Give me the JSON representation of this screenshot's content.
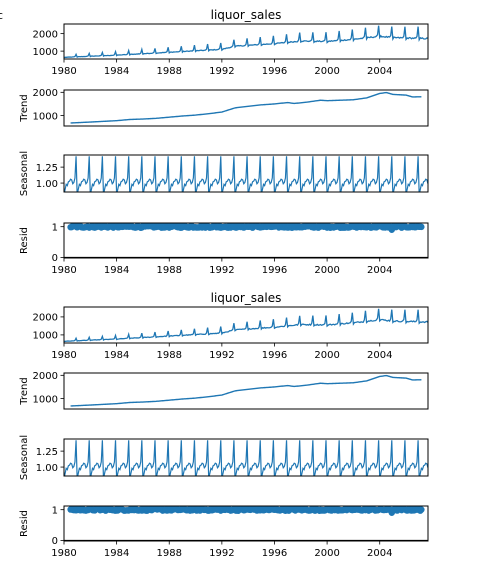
{
  "figure": {
    "stray_mark": "c",
    "colors": {
      "line": "#1f77b4",
      "axis": "#000000"
    }
  },
  "chart_data": [
    {
      "type": "line",
      "title": "liquor_sales",
      "ylabel": "",
      "xlim": [
        1980.0,
        2007.67
      ],
      "ylim": [
        550,
        2550
      ],
      "yticks": [
        1000,
        2000
      ],
      "xticks": [
        1980,
        1984,
        1988,
        1992,
        1996,
        2000,
        2004
      ],
      "series": [
        {
          "kind": "monthly-observed",
          "start": 1980.0,
          "months": 333,
          "annual_base_anchors": [
            [
              1980,
              650
            ],
            [
              1984,
              780
            ],
            [
              1988,
              950
            ],
            [
              1992,
              1120
            ],
            [
              1993,
              1300
            ],
            [
              1996,
              1450
            ],
            [
              1998,
              1600
            ],
            [
              2000,
              1580
            ],
            [
              2002,
              1700
            ],
            [
              2004,
              1880
            ],
            [
              2005,
              1800
            ],
            [
              2007.67,
              1750
            ]
          ],
          "seasonal_amplitude_start": 120,
          "seasonal_amplitude_end": 650
        }
      ]
    },
    {
      "type": "line",
      "title": "",
      "ylabel": "Trend",
      "xlim": [
        1980.0,
        2007.67
      ],
      "ylim": [
        550,
        2100
      ],
      "yticks": [
        1000,
        2000
      ],
      "xticks": [],
      "series": [
        {
          "kind": "trend",
          "points": [
            [
              1980.5,
              680
            ],
            [
              1982,
              720
            ],
            [
              1984,
              780
            ],
            [
              1985,
              830
            ],
            [
              1986,
              850
            ],
            [
              1987,
              880
            ],
            [
              1988,
              930
            ],
            [
              1989,
              980
            ],
            [
              1990,
              1020
            ],
            [
              1991,
              1080
            ],
            [
              1992,
              1150
            ],
            [
              1993,
              1330
            ],
            [
              1994,
              1400
            ],
            [
              1995,
              1460
            ],
            [
              1996,
              1500
            ],
            [
              1997,
              1560
            ],
            [
              1997.5,
              1520
            ],
            [
              1998.5,
              1580
            ],
            [
              1999.5,
              1660
            ],
            [
              2000,
              1640
            ],
            [
              2001,
              1660
            ],
            [
              2002,
              1680
            ],
            [
              2003,
              1760
            ],
            [
              2004,
              1950
            ],
            [
              2004.5,
              1990
            ],
            [
              2005,
              1910
            ],
            [
              2006,
              1880
            ],
            [
              2006.5,
              1800
            ],
            [
              2007.2,
              1810
            ]
          ]
        }
      ]
    },
    {
      "type": "line",
      "title": "",
      "ylabel": "Seasonal",
      "xlim": [
        1980.0,
        2007.67
      ],
      "ylim": [
        0.86,
        1.44
      ],
      "yticks": [
        1.0,
        1.25
      ],
      "xticks": [],
      "series": [
        {
          "kind": "seasonal",
          "monthly_pattern": [
            0.82,
            0.9,
            0.98,
            0.96,
            1.02,
            1.03,
            1.06,
            1.05,
            0.99,
            1.01,
            1.08,
            1.42
          ]
        }
      ]
    },
    {
      "type": "scatter",
      "title": "",
      "ylabel": "Resid",
      "xlim": [
        1980.0,
        2007.67
      ],
      "ylim": [
        -0.02,
        1.12
      ],
      "yticks": [
        0,
        1
      ],
      "xticks": [
        1980,
        1984,
        1988,
        1992,
        1996,
        2000,
        2004
      ],
      "baseline": 0,
      "series": [
        {
          "kind": "residual",
          "center": 1.0,
          "spread": 0.035,
          "low_outlier_x": 2004.9,
          "low_outlier_y": 0.9
        }
      ]
    },
    {
      "type": "line",
      "title": "liquor_sales",
      "ylabel": "",
      "xlim": [
        1980.0,
        2007.67
      ],
      "ylim": [
        550,
        2550
      ],
      "yticks": [
        1000,
        2000
      ],
      "xticks": [
        1980,
        1984,
        1988,
        1992,
        1996,
        2000,
        2004
      ],
      "series": [
        {
          "kind": "monthly-observed",
          "start": 1980.0,
          "months": 333,
          "annual_base_anchors": [
            [
              1980,
              650
            ],
            [
              1984,
              780
            ],
            [
              1988,
              950
            ],
            [
              1992,
              1120
            ],
            [
              1993,
              1300
            ],
            [
              1996,
              1450
            ],
            [
              1998,
              1600
            ],
            [
              2000,
              1580
            ],
            [
              2002,
              1700
            ],
            [
              2004,
              1880
            ],
            [
              2005,
              1800
            ],
            [
              2007.67,
              1750
            ]
          ],
          "seasonal_amplitude_start": 120,
          "seasonal_amplitude_end": 650
        }
      ]
    },
    {
      "type": "line",
      "title": "",
      "ylabel": "Trend",
      "xlim": [
        1980.0,
        2007.67
      ],
      "ylim": [
        550,
        2100
      ],
      "yticks": [
        1000,
        2000
      ],
      "xticks": [],
      "series": [
        {
          "kind": "trend",
          "points": [
            [
              1980.5,
              680
            ],
            [
              1982,
              720
            ],
            [
              1984,
              780
            ],
            [
              1985,
              830
            ],
            [
              1986,
              850
            ],
            [
              1987,
              880
            ],
            [
              1988,
              930
            ],
            [
              1989,
              980
            ],
            [
              1990,
              1020
            ],
            [
              1991,
              1080
            ],
            [
              1992,
              1150
            ],
            [
              1993,
              1330
            ],
            [
              1994,
              1400
            ],
            [
              1995,
              1460
            ],
            [
              1996,
              1500
            ],
            [
              1997,
              1560
            ],
            [
              1997.5,
              1520
            ],
            [
              1998.5,
              1580
            ],
            [
              1999.5,
              1660
            ],
            [
              2000,
              1640
            ],
            [
              2001,
              1660
            ],
            [
              2002,
              1680
            ],
            [
              2003,
              1760
            ],
            [
              2004,
              1950
            ],
            [
              2004.5,
              1990
            ],
            [
              2005,
              1910
            ],
            [
              2006,
              1880
            ],
            [
              2006.5,
              1800
            ],
            [
              2007.2,
              1810
            ]
          ]
        }
      ]
    },
    {
      "type": "line",
      "title": "",
      "ylabel": "Seasonal",
      "xlim": [
        1980.0,
        2007.67
      ],
      "ylim": [
        0.86,
        1.44
      ],
      "yticks": [
        1.0,
        1.25
      ],
      "xticks": [],
      "series": [
        {
          "kind": "seasonal",
          "monthly_pattern": [
            0.82,
            0.9,
            0.98,
            0.96,
            1.02,
            1.03,
            1.06,
            1.05,
            0.99,
            1.01,
            1.08,
            1.42
          ]
        }
      ]
    },
    {
      "type": "scatter",
      "title": "",
      "ylabel": "Resid",
      "xlim": [
        1980.0,
        2007.67
      ],
      "ylim": [
        -0.02,
        1.12
      ],
      "yticks": [
        0,
        1
      ],
      "xticks": [
        1980,
        1984,
        1988,
        1992,
        1996,
        2000,
        2004
      ],
      "baseline": 0,
      "series": [
        {
          "kind": "residual",
          "center": 1.0,
          "spread": 0.035,
          "low_outlier_x": 2004.9,
          "low_outlier_y": 0.9
        }
      ]
    }
  ]
}
